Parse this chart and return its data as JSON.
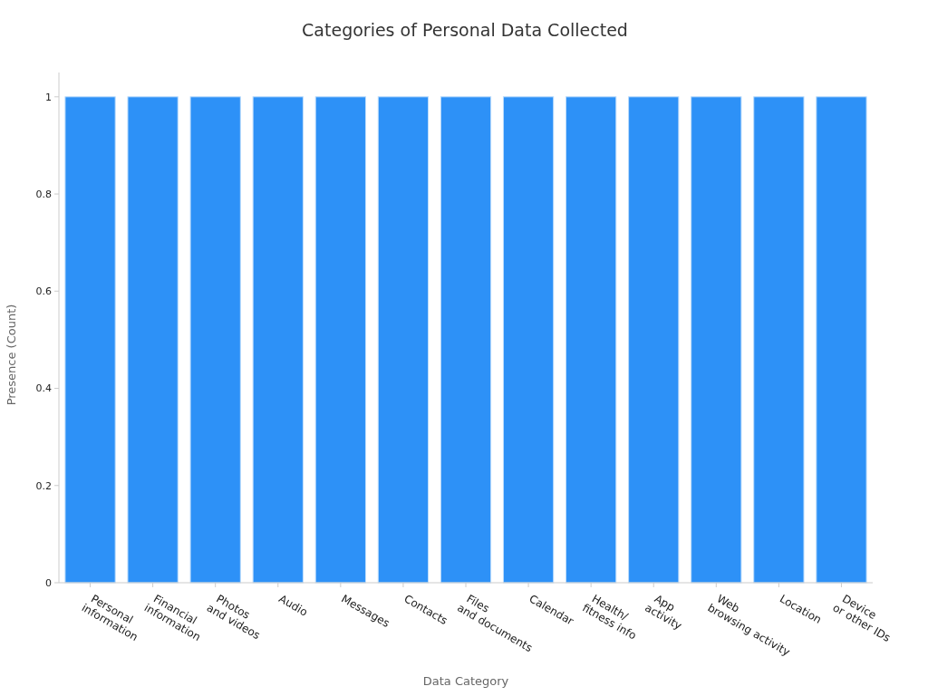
{
  "chart_data": {
    "type": "bar",
    "title": "Categories of Personal Data Collected",
    "xlabel": "Data Category",
    "ylabel": "Presence (Count)",
    "categories": [
      "Personal\ninformation",
      "Financial\ninformation",
      "Photos\nand videos",
      "Audio",
      "Messages",
      "Contacts",
      "Files\nand documents",
      "Calendar",
      "Health/\nfitness info",
      "App\nactivity",
      "Web\nbrowsing activity",
      "Location",
      "Device\nor other IDs"
    ],
    "values": [
      1,
      1,
      1,
      1,
      1,
      1,
      1,
      1,
      1,
      1,
      1,
      1,
      1
    ],
    "color": "#2d91f7",
    "ylim": [
      0,
      1.05
    ],
    "yticks": [
      0,
      0.2,
      0.4,
      0.6,
      0.8,
      1
    ],
    "grid": false
  }
}
